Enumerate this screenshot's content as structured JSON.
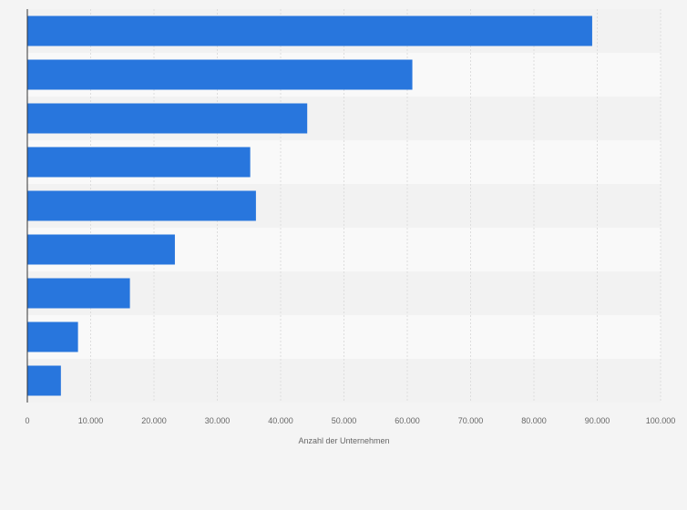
{
  "chart_data": {
    "type": "bar",
    "orientation": "horizontal",
    "categories": [
      "",
      "",
      "",
      "",
      "",
      "",
      "",
      "",
      ""
    ],
    "values": [
      89200,
      60800,
      44200,
      35200,
      36100,
      23300,
      16200,
      8000,
      5300
    ],
    "xlabel": "Anzahl der Unternehmen",
    "ylabel": "",
    "xlim": [
      0,
      100000
    ],
    "x_ticks": [
      0,
      10000,
      20000,
      30000,
      40000,
      50000,
      60000,
      70000,
      80000,
      90000,
      100000
    ],
    "x_tick_labels": [
      "0",
      "10.000",
      "20.000",
      "30.000",
      "40.000",
      "50.000",
      "60.000",
      "70.000",
      "80.000",
      "90.000",
      "100.000"
    ],
    "grid": true,
    "legend": "none",
    "colors": {
      "bar": "#2876dd",
      "row_band_dark": "#f2f2f2",
      "row_band_light": "#f9f9f9",
      "gridline": "#dddddd",
      "axis": "#333333",
      "text": "#666666"
    }
  }
}
